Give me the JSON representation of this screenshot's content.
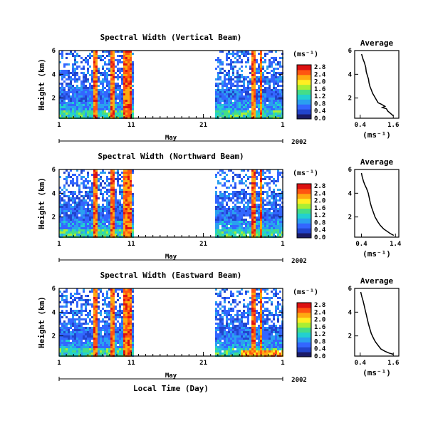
{
  "figure": {
    "x_axis": {
      "ticks": [
        "1",
        "11",
        "21",
        "1"
      ],
      "month_label": "May",
      "year_label": "2002",
      "xlabel": "Local Time (Day)",
      "range_days": [
        1,
        32
      ]
    },
    "y_axis": {
      "label": "Height (km)",
      "ticks": [
        "6",
        "4",
        "2"
      ],
      "ylim": [
        0.3,
        6
      ]
    },
    "colorbar": {
      "unit": "(ms⁻¹)",
      "colors": [
        "#1a1a66",
        "#2244cc",
        "#3366ff",
        "#2aa0f0",
        "#22d0d0",
        "#44dd88",
        "#aaee33",
        "#ffee22",
        "#ffaa11",
        "#ff5511",
        "#dd1111"
      ]
    },
    "average_panel": {
      "title": "Average",
      "yticks": [
        "6",
        "4",
        "2"
      ],
      "xlabel": "(ms⁻¹)"
    }
  },
  "chart_data": [
    {
      "type": "heatmap",
      "title": "Spectral Width (Vertical Beam)",
      "colorbar_ticks": [
        "2.8",
        "2.4",
        "2.0",
        "1.6",
        "1.2",
        "0.8",
        "0.4",
        "0.0"
      ],
      "data_gap_days": [
        11.2,
        22.5
      ],
      "note_bands": "strong spectral widths near the surface; vertical streaks of high values near days 6, 8 and 10"
    },
    {
      "type": "line",
      "title": "Average",
      "xlim": [
        0.2,
        1.8
      ],
      "xticks": [
        "0.4",
        "1.6"
      ],
      "ylim": [
        0.3,
        6
      ],
      "x": [
        0.45,
        0.5,
        0.55,
        0.6,
        0.62,
        0.66,
        0.7,
        0.72,
        0.75,
        0.8,
        0.85,
        0.9,
        0.95,
        1.0,
        1.05,
        1.15,
        1.3,
        1.2,
        1.35,
        1.4,
        1.5,
        1.6
      ],
      "y": [
        5.7,
        5.3,
        5.0,
        4.6,
        4.2,
        3.9,
        3.6,
        3.3,
        3.0,
        2.7,
        2.4,
        2.2,
        2.0,
        1.8,
        1.6,
        1.5,
        1.3,
        1.2,
        1.1,
        0.9,
        0.7,
        0.5
      ]
    },
    {
      "type": "heatmap",
      "title": "Spectral Width (Northward Beam)",
      "colorbar_ticks": [
        "2.8",
        "2.4",
        "2.0",
        "1.6",
        "1.2",
        "0.8",
        "0.4",
        "0.0"
      ],
      "data_gap_days": [
        11.2,
        22.5
      ]
    },
    {
      "type": "line",
      "title": "Average",
      "xlim": [
        0.2,
        1.5
      ],
      "xticks": [
        "0.4",
        "1.4"
      ],
      "ylim": [
        0.3,
        6
      ],
      "x": [
        0.4,
        0.42,
        0.46,
        0.5,
        0.55,
        0.6,
        0.63,
        0.66,
        0.7,
        0.75,
        0.8,
        0.88,
        0.95,
        1.05,
        1.15,
        1.25,
        1.35
      ],
      "y": [
        5.7,
        5.4,
        5.0,
        4.7,
        4.4,
        4.0,
        3.6,
        3.2,
        2.8,
        2.4,
        2.0,
        1.6,
        1.3,
        1.0,
        0.8,
        0.6,
        0.45
      ]
    },
    {
      "type": "heatmap",
      "title": "Spectral Width (Eastward Beam)",
      "colorbar_ticks": [
        "2.8",
        "2.4",
        "2.0",
        "1.6",
        "1.2",
        "0.8",
        "0.4",
        "0.0"
      ],
      "data_gap_days": [
        11.2,
        22.5
      ]
    },
    {
      "type": "line",
      "title": "Average",
      "xlim": [
        0.2,
        1.8
      ],
      "xticks": [
        "0.4",
        "1.6"
      ],
      "ylim": [
        0.3,
        6
      ],
      "x": [
        0.42,
        0.46,
        0.5,
        0.54,
        0.58,
        0.62,
        0.66,
        0.7,
        0.75,
        0.8,
        0.88,
        0.95,
        1.05,
        1.15,
        1.3,
        1.45,
        1.6
      ],
      "y": [
        5.7,
        5.3,
        5.0,
        4.6,
        4.2,
        3.8,
        3.4,
        3.0,
        2.6,
        2.2,
        1.8,
        1.5,
        1.2,
        0.9,
        0.7,
        0.55,
        0.45
      ]
    }
  ]
}
